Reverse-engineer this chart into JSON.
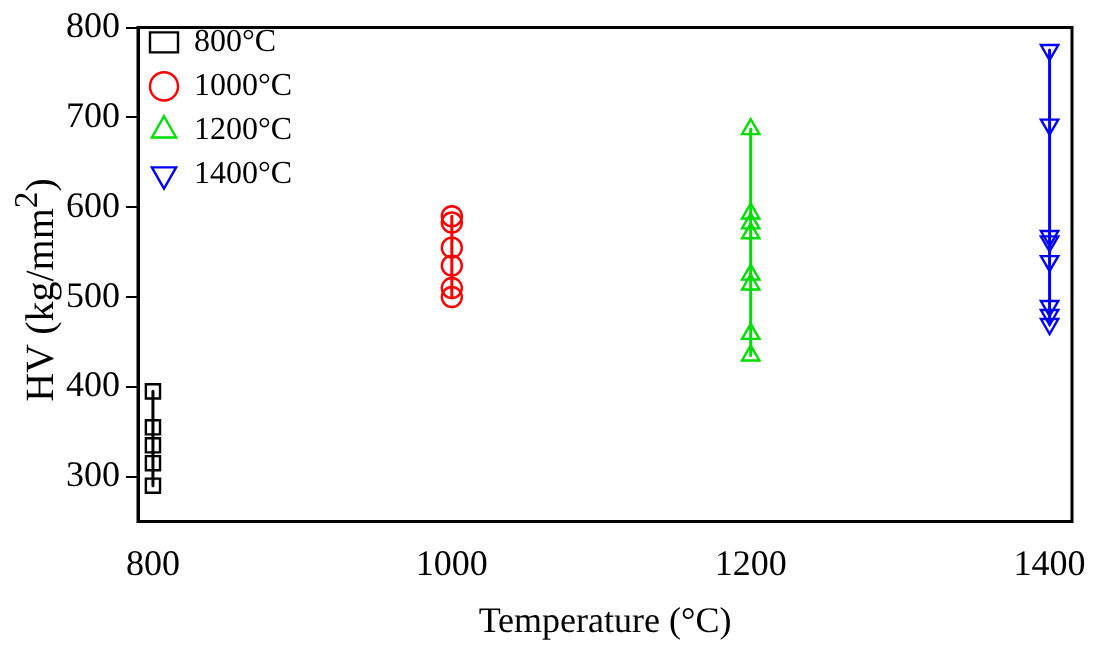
{
  "chart_data": {
    "type": "line",
    "xlabel": "Temperature (°C)",
    "ylabel": "HV (kg/mm$^{2}$)",
    "xlim": [
      790,
      1415
    ],
    "xticks": [
      800,
      1000,
      1200,
      1400
    ],
    "ylim": [
      250,
      800
    ],
    "yticks": [
      300,
      400,
      500,
      600,
      700,
      800
    ],
    "grid": false,
    "legend": "top left",
    "line_style": "solid",
    "series": [
      {
        "name": "800°C",
        "color": "#000000",
        "marker": "square",
        "x": [
          800,
          800,
          800,
          800,
          800
        ],
        "values": [
          395,
          355,
          335,
          315,
          290
        ]
      },
      {
        "name": "1000°C",
        "color": "#ff0000",
        "marker": "circle",
        "x": [
          1000,
          1000,
          1000,
          1000,
          1000,
          1000
        ],
        "values": [
          590,
          583,
          555,
          535,
          510,
          500
        ]
      },
      {
        "name": "1200°C",
        "color": "#00dd00",
        "marker": "triangle",
        "x": [
          1200,
          1200,
          1200,
          1200,
          1200,
          1200,
          1200,
          1200
        ],
        "values": [
          687,
          593,
          582,
          571,
          525,
          514,
          459,
          435
        ]
      },
      {
        "name": "1400°C",
        "color": "#0000ff",
        "marker": "triangle-down",
        "x": [
          1400,
          1400,
          1400,
          1400,
          1400,
          1400,
          1400,
          1400
        ],
        "values": [
          775,
          692,
          568,
          562,
          540,
          490,
          480,
          470
        ]
      }
    ]
  }
}
